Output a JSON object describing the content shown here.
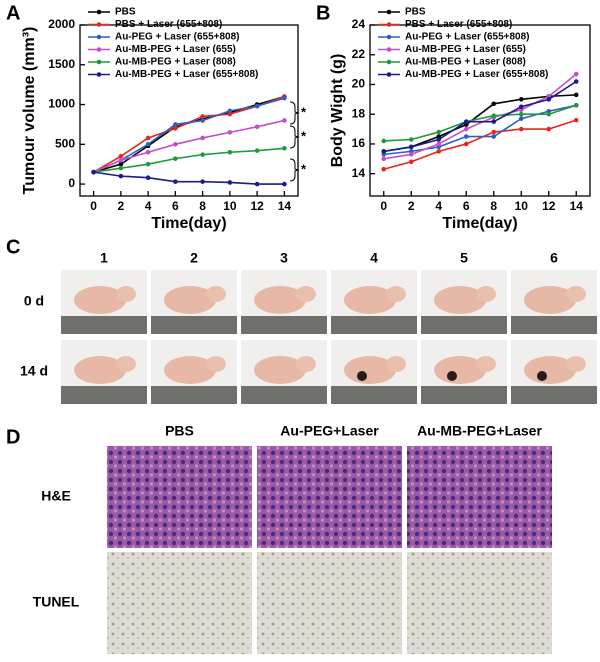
{
  "panel_labels": [
    "A",
    "B",
    "C",
    "D"
  ],
  "chart_data": [
    {
      "type": "line",
      "ylabel": "Tumour volume (mm³)",
      "xlabel": "Time(day)",
      "x": [
        0,
        2,
        4,
        6,
        8,
        10,
        12,
        14
      ],
      "xlim": [
        -1,
        15
      ],
      "xticks": [
        0,
        2,
        4,
        6,
        8,
        10,
        12,
        14
      ],
      "ylim": [
        -150,
        2000
      ],
      "yticks": [
        0,
        500,
        1000,
        1500,
        2000
      ],
      "legend": "upper left",
      "annotations": [
        "*",
        "*",
        "*"
      ],
      "series": [
        {
          "name": "PBS",
          "color": "#000000",
          "values": [
            150,
            250,
            480,
            720,
            820,
            900,
            1000,
            1100
          ]
        },
        {
          "name": "PBS + Laser (655+808)",
          "color": "#e8261c",
          "values": [
            150,
            350,
            580,
            700,
            850,
            880,
            980,
            1100
          ]
        },
        {
          "name": "Au-PEG + Laser (655+808)",
          "color": "#2d5fc4",
          "values": [
            150,
            300,
            500,
            750,
            800,
            920,
            980,
            1080
          ]
        },
        {
          "name": "Au-MB-PEG + Laser (655)",
          "color": "#c34fc9",
          "values": [
            150,
            300,
            400,
            500,
            580,
            650,
            720,
            800
          ]
        },
        {
          "name": "Au-MB-PEG + Laser (808)",
          "color": "#1f9a3a",
          "values": [
            150,
            200,
            250,
            320,
            370,
            400,
            420,
            450
          ]
        },
        {
          "name": "Au-MB-PEG + Laser (655+808)",
          "color": "#1a1a8c",
          "values": [
            150,
            100,
            80,
            30,
            30,
            20,
            0,
            0
          ]
        }
      ]
    },
    {
      "type": "line",
      "ylabel": "Body Wight (g)",
      "xlabel": "Time(day)",
      "x": [
        0,
        2,
        4,
        6,
        8,
        10,
        12,
        14
      ],
      "xlim": [
        -1,
        15
      ],
      "xticks": [
        0,
        2,
        4,
        6,
        8,
        10,
        12,
        14
      ],
      "ylim": [
        12.5,
        24
      ],
      "yticks": [
        14,
        16,
        18,
        20,
        22,
        24
      ],
      "legend": "upper left",
      "series": [
        {
          "name": "PBS",
          "color": "#000000",
          "values": [
            15.5,
            15.8,
            16.5,
            17.3,
            18.7,
            19.0,
            19.2,
            19.3
          ]
        },
        {
          "name": "PBS + Laser (655+808)",
          "color": "#e8261c",
          "values": [
            14.3,
            14.8,
            15.5,
            16.0,
            16.8,
            17.0,
            17.0,
            17.6
          ]
        },
        {
          "name": "Au-PEG + Laser (655+808)",
          "color": "#2d5fc4",
          "values": [
            15.3,
            15.5,
            15.8,
            16.5,
            16.5,
            17.7,
            18.2,
            18.6
          ]
        },
        {
          "name": "Au-MB-PEG + Laser (655)",
          "color": "#c34fc9",
          "values": [
            15.0,
            15.3,
            16.0,
            17.0,
            17.8,
            18.3,
            19.2,
            20.7
          ]
        },
        {
          "name": "Au-MB-PEG + Laser (808)",
          "color": "#1f9a3a",
          "values": [
            16.2,
            16.3,
            16.8,
            17.5,
            17.9,
            18.0,
            18.0,
            18.6
          ]
        },
        {
          "name": "Au-MB-PEG + Laser (655+808)",
          "color": "#1a1a8c",
          "values": [
            15.5,
            15.8,
            16.3,
            17.5,
            17.5,
            18.5,
            19.0,
            20.2
          ]
        }
      ]
    }
  ],
  "panel_c": {
    "columns": [
      "1",
      "2",
      "3",
      "4",
      "5",
      "6"
    ],
    "rows": [
      "0 d",
      "14 d"
    ]
  },
  "panel_d": {
    "columns": [
      "PBS",
      "Au-PEG+Laser",
      "Au-MB-PEG+Laser"
    ],
    "rows": [
      "H&E",
      "TUNEL"
    ]
  }
}
